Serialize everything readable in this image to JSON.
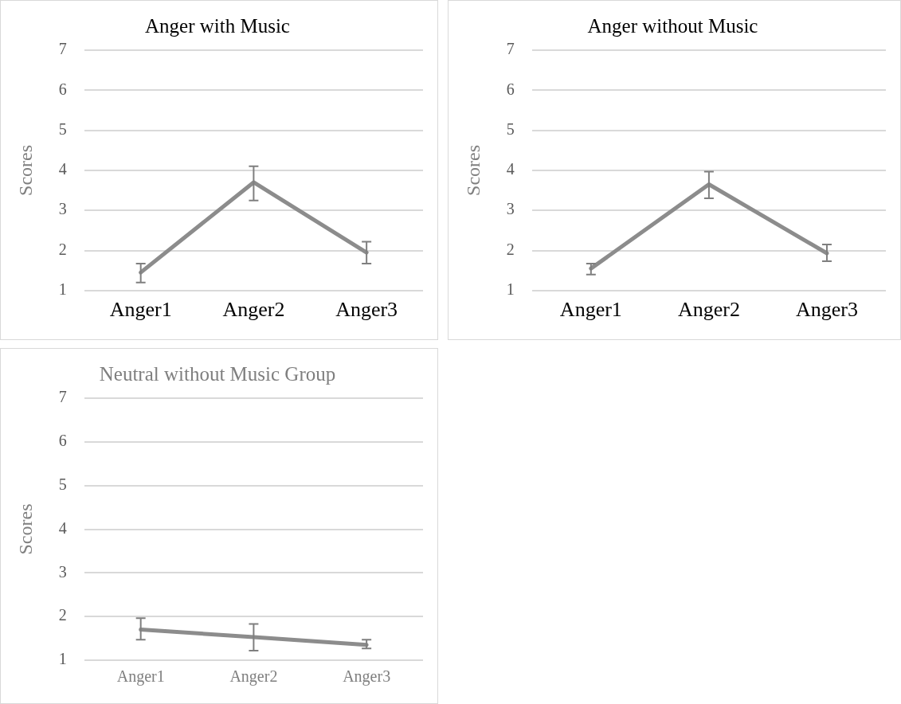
{
  "chart_data": [
    {
      "type": "line",
      "title": "Anger with Music",
      "ylabel": "Scores",
      "categories": [
        "Anger1",
        "Anger2",
        "Anger3"
      ],
      "series": [
        {
          "color": "#8c8c8c",
          "values": [
            1.45,
            3.7,
            1.95
          ],
          "errors": [
            [
              1.2,
              1.67
            ],
            [
              3.25,
              4.1
            ],
            [
              1.67,
              2.22
            ]
          ]
        }
      ],
      "ylim": [
        1,
        7
      ],
      "yticks": [
        1,
        2,
        3,
        4,
        5,
        6,
        7
      ],
      "grid": "y"
    },
    {
      "type": "line",
      "title": "Anger without Music",
      "ylabel": "Scores",
      "categories": [
        "Anger1",
        "Anger2",
        "Anger3"
      ],
      "series": [
        {
          "color": "#8c8c8c",
          "values": [
            1.55,
            3.65,
            1.93
          ],
          "errors": [
            [
              1.4,
              1.67
            ],
            [
              3.3,
              3.97
            ],
            [
              1.73,
              2.15
            ]
          ]
        }
      ],
      "ylim": [
        1,
        7
      ],
      "yticks": [
        1,
        2,
        3,
        4,
        5,
        6,
        7
      ],
      "grid": "y"
    },
    {
      "type": "line",
      "title": "Neutral without Music Group",
      "ylabel": "Scores",
      "categories": [
        "Anger1",
        "Anger2",
        "Anger3"
      ],
      "series": [
        {
          "color": "#8c8c8c",
          "values": [
            1.7,
            1.53,
            1.35
          ],
          "errors": [
            [
              1.47,
              1.96
            ],
            [
              1.22,
              1.83
            ],
            [
              1.27,
              1.47
            ]
          ]
        }
      ],
      "ylim": [
        1,
        7
      ],
      "yticks": [
        1,
        2,
        3,
        4,
        5,
        6,
        7
      ],
      "grid": "y"
    }
  ]
}
